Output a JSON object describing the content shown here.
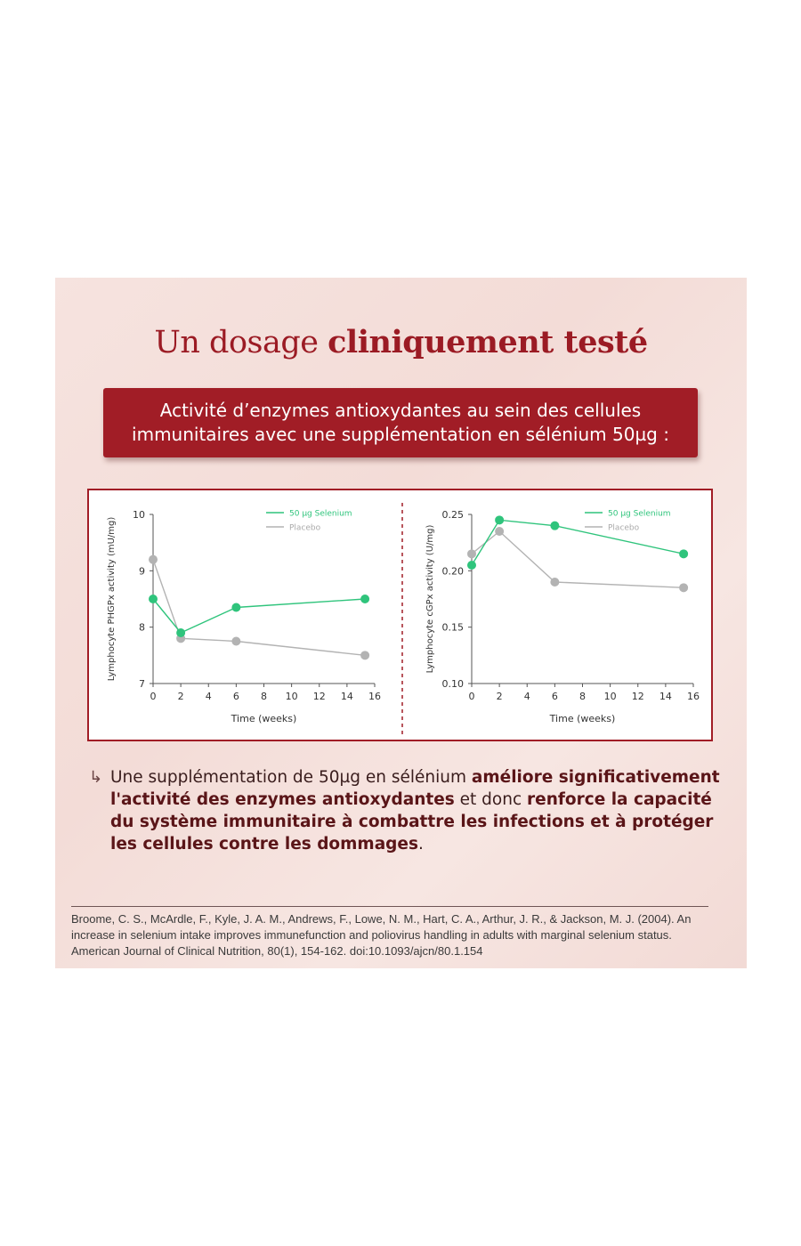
{
  "headline": {
    "normal": "Un dosage ",
    "bold": "cliniquement testé"
  },
  "banner": {
    "line1": "Activité d’enzymes antioxydantes au sein des cellules",
    "line2": "immunitaires avec une supplémentation en sélénium 50µg :"
  },
  "colors": {
    "selenium": "#2fc47c",
    "placebo": "#b3b3b3",
    "accent": "#a11d26"
  },
  "chart_data": [
    {
      "type": "line",
      "title": "",
      "xlabel": "Time (weeks)",
      "ylabel": "Lymphocyte PHGPx activity (mU/mg)",
      "xlim": [
        0,
        16
      ],
      "ylim": [
        7,
        10
      ],
      "xticks": [
        0,
        2,
        4,
        6,
        8,
        10,
        12,
        14,
        16
      ],
      "yticks": [
        7,
        8,
        9,
        10
      ],
      "legend_position": "top-right",
      "series": [
        {
          "name": "50 µg Selenium",
          "x": [
            0,
            2,
            6,
            15.3
          ],
          "values": [
            8.5,
            7.9,
            8.35,
            8.5
          ]
        },
        {
          "name": "Placebo",
          "x": [
            0,
            2,
            6,
            15.3
          ],
          "values": [
            9.2,
            7.8,
            7.75,
            7.5
          ]
        }
      ]
    },
    {
      "type": "line",
      "title": "",
      "xlabel": "Time (weeks)",
      "ylabel": "Lymphocyte cGPx activity (U/mg)",
      "xlim": [
        0,
        16
      ],
      "ylim": [
        0.1,
        0.25
      ],
      "xticks": [
        0,
        2,
        4,
        6,
        8,
        10,
        12,
        14,
        16
      ],
      "yticks": [
        "0.10",
        "0.15",
        "0.20",
        "0.25"
      ],
      "legend_position": "top-right",
      "series": [
        {
          "name": "50 µg Selenium",
          "x": [
            0,
            2,
            6,
            15.3
          ],
          "values": [
            0.205,
            0.245,
            0.24,
            0.215
          ]
        },
        {
          "name": "Placebo",
          "x": [
            0,
            2,
            6,
            15.3
          ],
          "values": [
            0.215,
            0.235,
            0.19,
            0.185
          ]
        }
      ]
    }
  ],
  "summary": {
    "t1": "Une supplémentation de 50µg en sélénium ",
    "b1": "améliore significativement l'activité des enzymes antioxydantes",
    "t2": " et donc ",
    "b2": "renforce la capacité du système immunitaire à combattre les infections et à protéger les cellules contre les dommages",
    "t3": "."
  },
  "reference": "Broome, C. S., McArdle, F., Kyle, J. A. M., Andrews, F., Lowe, N. M., Hart, C. A., Arthur, J. R., & Jackson, M. J. (2004). An increase in selenium intake improves immunefunction and poliovirus handling in adults with marginal selenium status. American Journal of Clinical Nutrition, 80(1), 154-162. doi:10.1093/ajcn/80.1.154"
}
